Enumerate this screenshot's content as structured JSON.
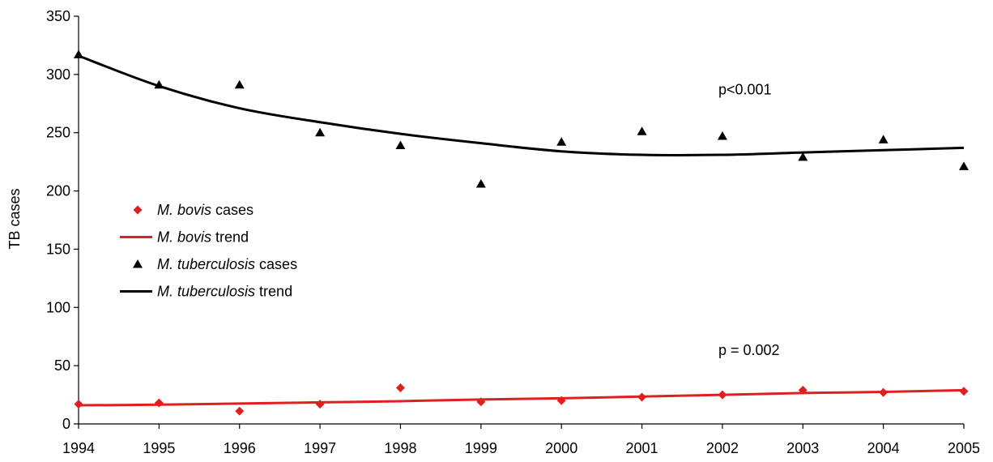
{
  "chart_data": {
    "type": "scatter",
    "ylabel": "TB cases",
    "xlabel": "",
    "x": [
      1994,
      1995,
      1996,
      1997,
      1998,
      1999,
      2000,
      2001,
      2002,
      2003,
      2004,
      2005
    ],
    "xlim": [
      1994,
      2005
    ],
    "ylim": [
      0,
      350
    ],
    "yticks": [
      0,
      50,
      100,
      150,
      200,
      250,
      300,
      350
    ],
    "grid": false,
    "legend_position": "left",
    "series": [
      {
        "name_italic": "M. bovis",
        "name_suffix": " cases",
        "kind": "points",
        "marker": "diamond",
        "color": "#e0201e",
        "values": [
          17,
          18,
          11,
          17,
          31,
          19,
          20,
          23,
          25,
          29,
          27,
          28
        ]
      },
      {
        "name_italic": "M. bovis",
        "name_suffix": " trend",
        "kind": "line",
        "color": "#e0201e",
        "values": [
          16,
          16.5,
          17.5,
          18.5,
          19.5,
          21,
          22,
          23.5,
          25,
          26.5,
          27.5,
          29
        ]
      },
      {
        "name_italic": "M. tuberculosis",
        "name_suffix": " cases",
        "kind": "points",
        "marker": "triangle",
        "color": "#000000",
        "values": [
          317,
          291,
          291,
          250,
          239,
          206,
          242,
          251,
          247,
          229,
          244,
          221
        ]
      },
      {
        "name_italic": "M. tuberculosis",
        "name_suffix": " trend",
        "kind": "line",
        "color": "#000000",
        "values": [
          316,
          290,
          271,
          259,
          249,
          241,
          234,
          231,
          231,
          233,
          235,
          237
        ]
      }
    ],
    "annotations": [
      {
        "text": "p<0.001",
        "x": 2001.95,
        "y": 283
      },
      {
        "text": "p = 0.002",
        "x": 2001.95,
        "y": 59
      }
    ]
  }
}
